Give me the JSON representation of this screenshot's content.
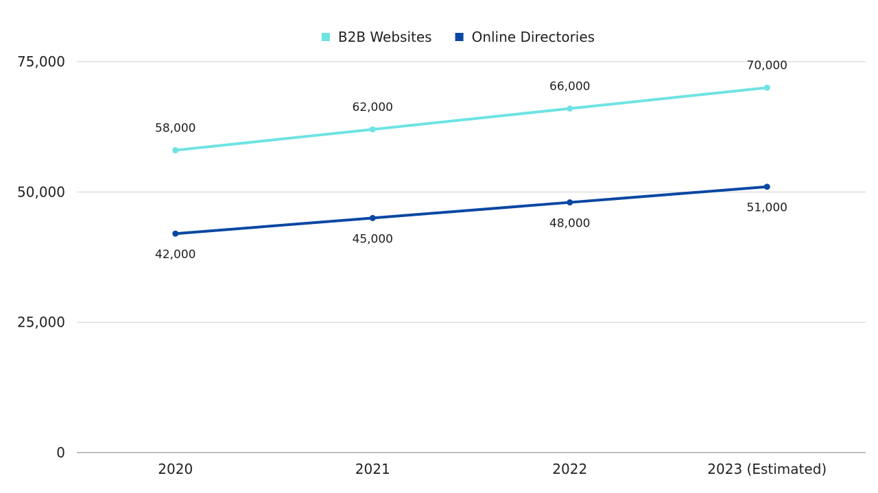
{
  "chart_data": {
    "type": "line",
    "categories": [
      "2020",
      "2021",
      "2022",
      "2023 (Estimated)"
    ],
    "series": [
      {
        "name": "B2B Websites",
        "values": [
          58000,
          62000,
          66000,
          70000
        ],
        "color": "#6ee3e3",
        "value_labels": [
          "58,000",
          "62,000",
          "66,000",
          "70,000"
        ],
        "label_position": "above"
      },
      {
        "name": "Online Directories",
        "values": [
          42000,
          45000,
          48000,
          51000
        ],
        "color": "#0a47a3",
        "value_labels": [
          "42,000",
          "45,000",
          "48,000",
          "51,000"
        ],
        "label_position": "below"
      }
    ],
    "ylim": [
      0,
      75000
    ],
    "yticks": [
      0,
      25000,
      50000,
      75000
    ],
    "ytick_labels": [
      "0",
      "25,000",
      "50,000",
      "75,000"
    ],
    "grid": true,
    "legend": "top-center"
  }
}
